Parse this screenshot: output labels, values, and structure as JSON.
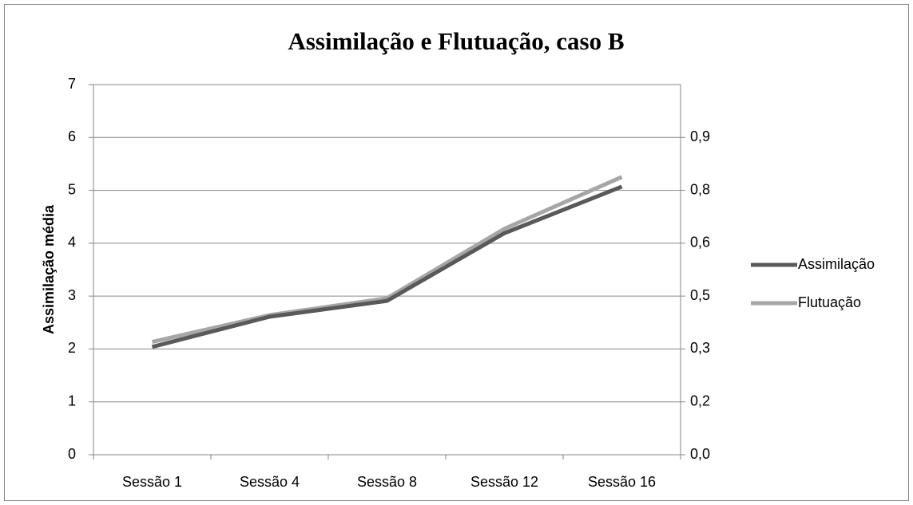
{
  "chart_data": {
    "type": "line",
    "title": "Assimilação e Flutuação, caso B",
    "y_label": "Assimilação média",
    "categories": [
      "Sessão 1",
      "Sessão 4",
      "Sessão 8",
      "Sessão 12",
      "Sessão 16"
    ],
    "series": [
      {
        "name": "Assimilação",
        "color": "#595959",
        "values": [
          2.04,
          2.61,
          2.91,
          4.19,
          5.07
        ]
      },
      {
        "name": "Flutuação",
        "color": "#a6a6a6",
        "axis": "y2",
        "values": [
          0.32,
          0.396,
          0.444,
          0.641,
          0.788
        ]
      }
    ],
    "ylim": [
      0,
      7
    ],
    "yticks": [
      0,
      1,
      2,
      3,
      4,
      5,
      6,
      7
    ],
    "y2lim": [
      0,
      1.05
    ],
    "y2ticks": [
      {
        "value": 0,
        "label": "0,0"
      },
      {
        "value": 0.15,
        "label": "0,2"
      },
      {
        "value": 0.3,
        "label": "0,3"
      },
      {
        "value": 0.45,
        "label": "0,5"
      },
      {
        "value": 0.6,
        "label": "0,6"
      },
      {
        "value": 0.75,
        "label": "0,8"
      },
      {
        "value": 0.9,
        "label": "0,9"
      }
    ],
    "grid": true,
    "legend": "right"
  }
}
